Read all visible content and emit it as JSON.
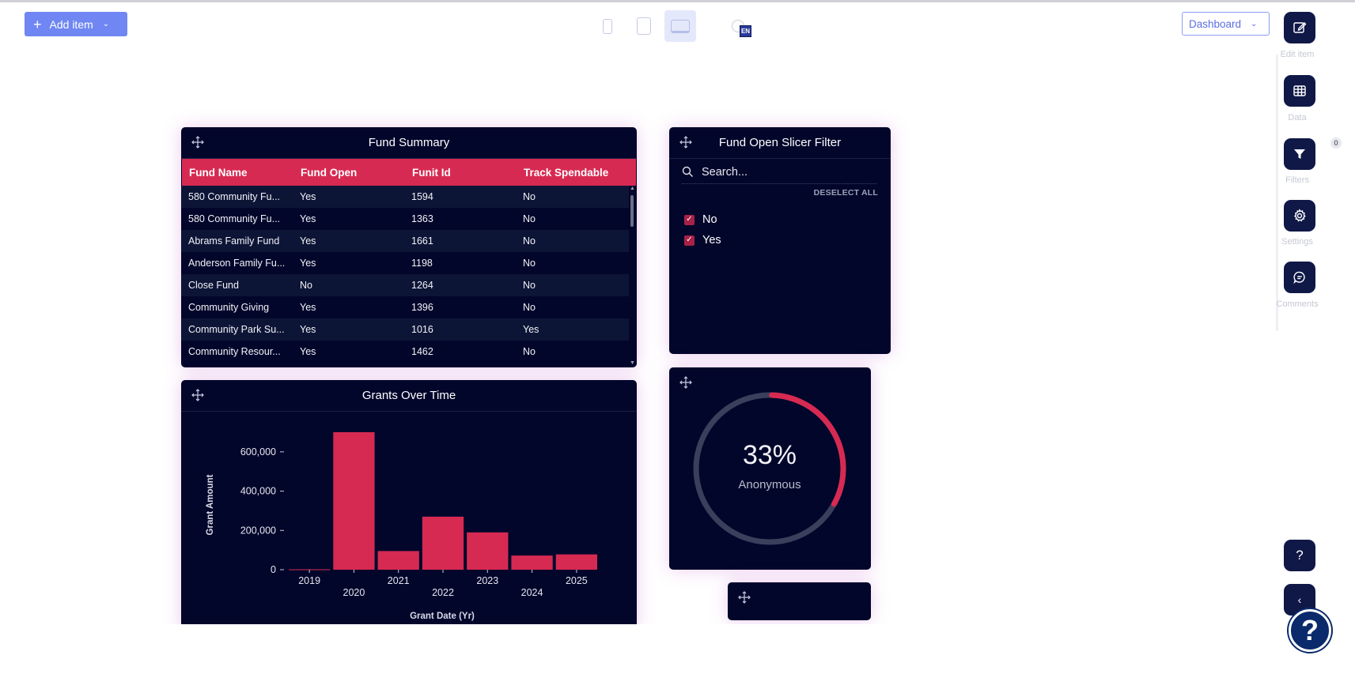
{
  "toolbar": {
    "add_item_label": "Add item",
    "dashboard_select": "Dashboard",
    "language": "EN"
  },
  "rail": {
    "edit_item": "Edit item",
    "data": "Data",
    "filters": "Filters",
    "filters_count": "0",
    "settings": "Settings",
    "comments": "Comments",
    "help": "?"
  },
  "fund_summary": {
    "title": "Fund Summary",
    "columns": [
      "Fund Name",
      "Fund Open",
      "Funit Id",
      "Track Spendable"
    ],
    "rows": [
      [
        "580 Community Fu...",
        "Yes",
        "1594",
        "No"
      ],
      [
        "580 Community Fu...",
        "Yes",
        "1363",
        "No"
      ],
      [
        "Abrams Family Fund",
        "Yes",
        "1661",
        "No"
      ],
      [
        "Anderson Family Fu...",
        "Yes",
        "1198",
        "No"
      ],
      [
        "Close Fund",
        "No",
        "1264",
        "No"
      ],
      [
        "Community Giving",
        "Yes",
        "1396",
        "No"
      ],
      [
        "Community Park Su...",
        "Yes",
        "1016",
        "Yes"
      ],
      [
        "Community Resour...",
        "Yes",
        "1462",
        "No"
      ]
    ]
  },
  "slicer": {
    "title": "Fund Open Slicer Filter",
    "search_placeholder": "Search...",
    "deselect_all": "DESELECT ALL",
    "options": [
      {
        "label": "No",
        "checked": true
      },
      {
        "label": "Yes",
        "checked": true
      }
    ]
  },
  "kpi": {
    "value": "33%",
    "label": "Anonymous",
    "fraction": 0.33,
    "accent": "#d72a52",
    "track": "#3a3f5c"
  },
  "grants_chart": {
    "title": "Grants Over Time"
  },
  "chart_data": {
    "type": "bar",
    "title": "Grants Over Time",
    "xlabel": "Grant Date (Yr)",
    "ylabel": "Grant Amount",
    "categories": [
      "2019",
      "2020",
      "2021",
      "2022",
      "2023",
      "2024",
      "2025"
    ],
    "values": [
      2000,
      700000,
      95000,
      270000,
      190000,
      72000,
      78000
    ],
    "yticks": [
      0,
      200000,
      400000,
      600000
    ],
    "ytick_labels": [
      "0",
      "200,000",
      "400,000",
      "600,000"
    ],
    "ylim": [
      0,
      700000
    ],
    "bar_color": "#d72a52"
  }
}
